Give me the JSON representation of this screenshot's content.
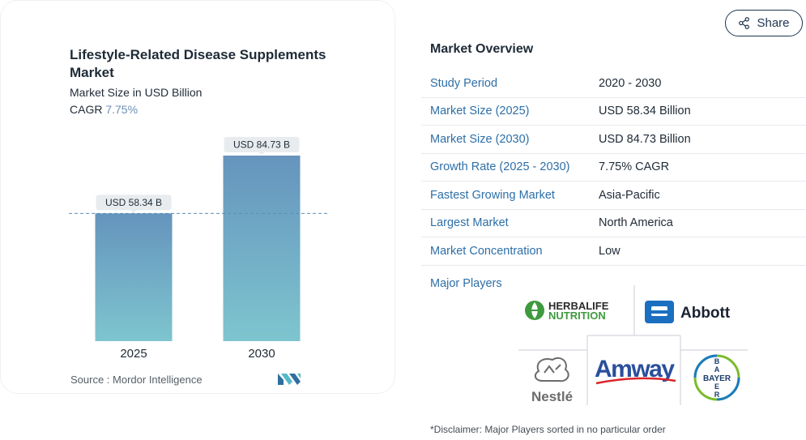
{
  "chart_data": {
    "type": "bar",
    "title": "Lifestyle-Related Disease Supplements Market",
    "subtitle": "Market Size in USD Billion",
    "cagr_label": "CAGR",
    "cagr_value": "7.75%",
    "categories": [
      "2025",
      "2030"
    ],
    "values": [
      58.34,
      84.73
    ],
    "data_labels": [
      "USD 58.34 B",
      "USD 84.73 B"
    ],
    "unit": "USD Billion",
    "reference_line": 58.34,
    "colors": {
      "bar_top": "#6594bd",
      "bar_bottom": "#7ec5cf",
      "reference_line": "#5c8fb8"
    }
  },
  "source": "Source :  Mordor Intelligence",
  "share": {
    "label": "Share"
  },
  "overview": {
    "title": "Market Overview",
    "rows": [
      {
        "label": "Study Period",
        "value": "2020 - 2030"
      },
      {
        "label": "Market Size (2025)",
        "value": "USD 58.34 Billion"
      },
      {
        "label": "Market Size (2030)",
        "value": "USD 84.73 Billion"
      },
      {
        "label": "Growth Rate (2025 - 2030)",
        "value": "7.75% CAGR"
      },
      {
        "label": "Fastest Growing Market",
        "value": "Asia-Pacific"
      },
      {
        "label": "Largest Market",
        "value": "North America"
      },
      {
        "label": "Market Concentration",
        "value": "Low"
      }
    ]
  },
  "players": {
    "label": "Major Players",
    "logos": [
      "HERBALIFE NUTRITION",
      "Abbott",
      "Nestlé",
      "Amway",
      "BAYER"
    ]
  },
  "disclaimer": "*Disclaimer: Major Players sorted in no particular order"
}
